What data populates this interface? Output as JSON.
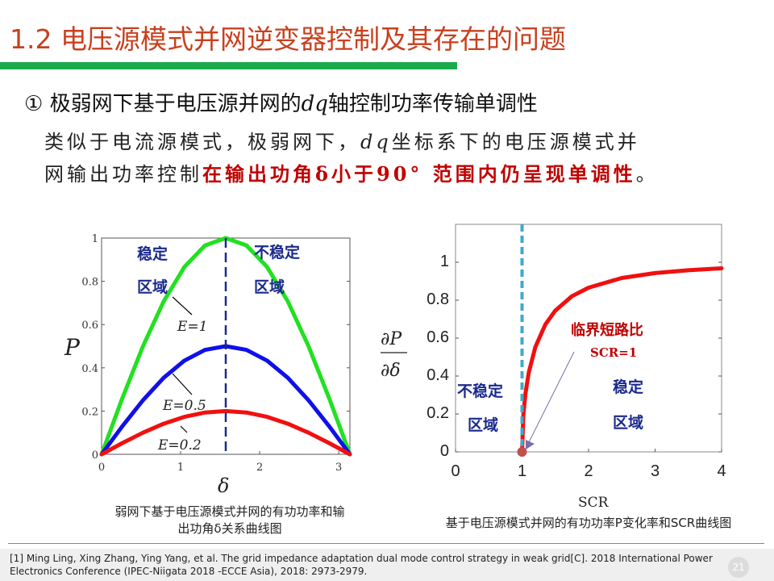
{
  "slide": {
    "title": "1.2 电压源模式并网逆变器控制及其存在的问题",
    "subheading_prefix": "① 极弱网下基于电压源并网的",
    "subheading_math": "dq",
    "subheading_suffix": "轴控制功率传输单调性",
    "body_line1_a": "类似于电流源模式，极弱网下，",
    "body_line1_math": "dq",
    "body_line1_b": "坐标系下的电压源模式并",
    "body_line2_a": "网输出功率控制",
    "body_line2_red": "在输出功角δ小于90° 范围内仍呈现单调性",
    "body_line2_end": "。",
    "caption1_line1": "弱网下基于电压源模式并网的有功功率和输",
    "caption1_line2": "出功角δ关系曲线图",
    "caption2": "基于电压源模式并网的有功功率P变化率和SCR曲线图",
    "reference": "[1] Ming Ling, Xing Zhang, Ying Yang, et al. The grid impedance adaptation dual mode control strategy in weak grid[C]. 2018 International Power Electronics Conference (IPEC-Niigata 2018 -ECCE Asia), 2018: 2973-2979.",
    "page_number": "21",
    "colors": {
      "title": "#c8401e",
      "bar": "#1aaa4a",
      "highlight": "#c00000",
      "zone": "#1a2a8c"
    }
  },
  "chart_data": [
    {
      "type": "line",
      "title": "",
      "xlabel": "δ",
      "ylabel": "P",
      "xlim": [
        0,
        3.1416
      ],
      "ylim": [
        0,
        1
      ],
      "xticks": [
        "0",
        "1",
        "2",
        "3"
      ],
      "xtick_values": [
        0,
        1,
        2,
        3
      ],
      "yticks": [
        "0",
        "0.2",
        "0.4",
        "0.6",
        "0.8",
        "1"
      ],
      "ytick_values": [
        0,
        0.2,
        0.4,
        0.6,
        0.8,
        1
      ],
      "x": [
        0,
        0.2618,
        0.5236,
        0.7854,
        1.0472,
        1.309,
        1.5708,
        1.8326,
        2.0944,
        2.3562,
        2.618,
        2.8798,
        3.1416
      ],
      "series": [
        {
          "name": "E=1",
          "color": "#22e022",
          "values": [
            0,
            0.2588,
            0.5,
            0.7071,
            0.866,
            0.9659,
            1,
            0.9659,
            0.866,
            0.7071,
            0.5,
            0.2588,
            0
          ]
        },
        {
          "name": "E=0.5",
          "color": "#1010e8",
          "values": [
            0,
            0.1294,
            0.25,
            0.3536,
            0.433,
            0.483,
            0.5,
            0.483,
            0.433,
            0.3536,
            0.25,
            0.1294,
            0
          ]
        },
        {
          "name": "E=0.2",
          "color": "#f01010",
          "values": [
            0,
            0.0518,
            0.1,
            0.1414,
            0.1732,
            0.1932,
            0.2,
            0.1932,
            0.1732,
            0.1414,
            0.1,
            0.0518,
            0
          ]
        }
      ],
      "vline_x": 1.5708,
      "annotations": {
        "stable_1": "稳定",
        "stable_2": "区域",
        "unstable_1": "不稳定",
        "unstable_2": "区域",
        "e1": "E=1",
        "e05": "E=0.5",
        "e02": "E=0.2"
      }
    },
    {
      "type": "line",
      "title": "",
      "xlabel": "SCR",
      "ylabel_num": "∂P",
      "ylabel_den": "∂δ",
      "xlim": [
        0,
        4
      ],
      "ylim": [
        0,
        1.2
      ],
      "xticks": [
        "0",
        "1",
        "2",
        "3",
        "4"
      ],
      "xtick_values": [
        0,
        1,
        2,
        3,
        4
      ],
      "yticks": [
        "0",
        "0.2",
        "0.4",
        "0.6",
        "0.8",
        "1"
      ],
      "ytick_values": [
        0,
        0.2,
        0.4,
        0.6,
        0.8,
        1
      ],
      "x": [
        1,
        1.02,
        1.05,
        1.1,
        1.2,
        1.35,
        1.5,
        1.75,
        2,
        2.5,
        3,
        3.5,
        4
      ],
      "series": [
        {
          "name": "dP/dδ",
          "color": "#f01010",
          "values": [
            0,
            0.197,
            0.305,
            0.417,
            0.553,
            0.672,
            0.745,
            0.821,
            0.866,
            0.917,
            0.943,
            0.958,
            0.968
          ]
        }
      ],
      "vline_x": 1,
      "critical_point": [
        1,
        0
      ],
      "annotations": {
        "critical_1": "临界短路比",
        "critical_2": "SCR=1",
        "unstable_1": "不稳定",
        "unstable_2": "区域",
        "stable_1": "稳定",
        "stable_2": "区域"
      }
    }
  ]
}
